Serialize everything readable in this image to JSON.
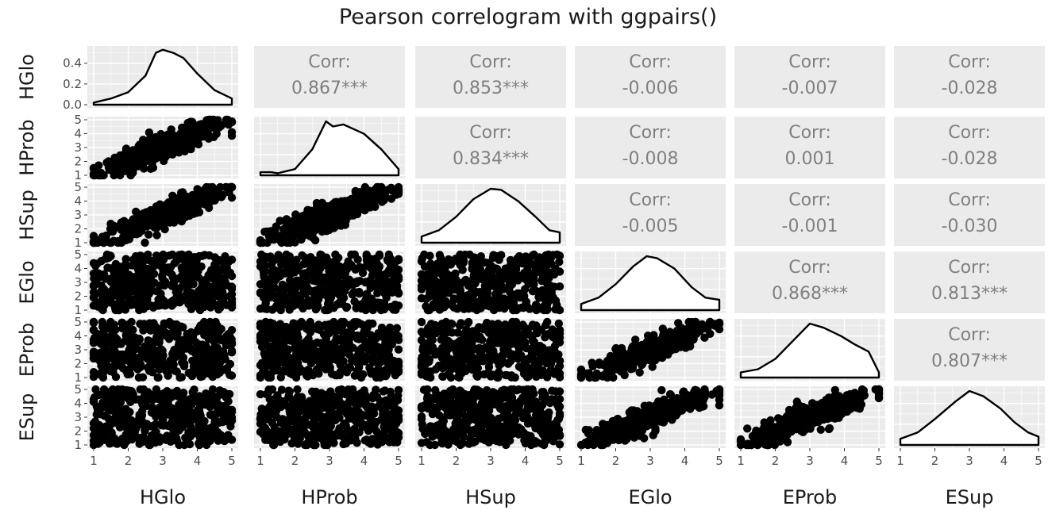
{
  "title": "Pearson correlogram with ggpairs()",
  "variables": [
    "HGlo",
    "HProb",
    "HSup",
    "EGlo",
    "EProb",
    "ESup"
  ],
  "chart_data": {
    "type": "scatter",
    "title": "Pearson correlogram with ggpairs()",
    "layout": "scatterplot-matrix",
    "variables": [
      "HGlo",
      "HProb",
      "HSup",
      "EGlo",
      "EProb",
      "ESup"
    ],
    "axis_range": [
      1,
      5
    ],
    "x_ticks": [
      1,
      2,
      3,
      4,
      5
    ],
    "y_ticks": [
      1,
      2,
      3,
      4,
      5
    ],
    "density_y_ticks_first_row": [
      "0.0",
      "0.2",
      "0.4"
    ],
    "density_y_range": [
      0,
      0.52
    ],
    "grid": true,
    "correlation_label": "Corr:",
    "correlations": [
      {
        "row": "HGlo",
        "col": "HProb",
        "value": "0.867***"
      },
      {
        "row": "HGlo",
        "col": "HSup",
        "value": "0.853***"
      },
      {
        "row": "HGlo",
        "col": "EGlo",
        "value": "-0.006"
      },
      {
        "row": "HGlo",
        "col": "EProb",
        "value": "-0.007"
      },
      {
        "row": "HGlo",
        "col": "ESup",
        "value": "-0.028"
      },
      {
        "row": "HProb",
        "col": "HSup",
        "value": "0.834***"
      },
      {
        "row": "HProb",
        "col": "EGlo",
        "value": "-0.008"
      },
      {
        "row": "HProb",
        "col": "EProb",
        "value": "0.001"
      },
      {
        "row": "HProb",
        "col": "ESup",
        "value": "-0.028"
      },
      {
        "row": "HSup",
        "col": "EGlo",
        "value": "-0.005"
      },
      {
        "row": "HSup",
        "col": "EProb",
        "value": "-0.001"
      },
      {
        "row": "HSup",
        "col": "ESup",
        "value": "-0.030"
      },
      {
        "row": "EGlo",
        "col": "EProb",
        "value": "0.868***"
      },
      {
        "row": "EGlo",
        "col": "ESup",
        "value": "0.813***"
      },
      {
        "row": "EProb",
        "col": "ESup",
        "value": "0.807***"
      }
    ],
    "densities": {
      "HGlo": [
        [
          1,
          0.02
        ],
        [
          1.5,
          0.06
        ],
        [
          2,
          0.12
        ],
        [
          2.5,
          0.28
        ],
        [
          2.8,
          0.5
        ],
        [
          3.0,
          0.53
        ],
        [
          3.3,
          0.5
        ],
        [
          3.6,
          0.45
        ],
        [
          4,
          0.3
        ],
        [
          4.5,
          0.14
        ],
        [
          5,
          0.06
        ]
      ],
      "HProb": [
        [
          1,
          0.03
        ],
        [
          1.3,
          0.03
        ],
        [
          1.5,
          0.02
        ],
        [
          2,
          0.06
        ],
        [
          2.5,
          0.25
        ],
        [
          2.9,
          0.52
        ],
        [
          3.1,
          0.47
        ],
        [
          3.4,
          0.49
        ],
        [
          4,
          0.4
        ],
        [
          4.5,
          0.25
        ],
        [
          5,
          0.06
        ]
      ],
      "HSup": [
        [
          1,
          0.06
        ],
        [
          1.5,
          0.12
        ],
        [
          2,
          0.25
        ],
        [
          2.5,
          0.42
        ],
        [
          3.0,
          0.52
        ],
        [
          3.3,
          0.51
        ],
        [
          3.8,
          0.4
        ],
        [
          4.3,
          0.25
        ],
        [
          4.7,
          0.12
        ],
        [
          5,
          0.1
        ]
      ],
      "EGlo": [
        [
          1,
          0.06
        ],
        [
          1.5,
          0.12
        ],
        [
          2,
          0.25
        ],
        [
          2.5,
          0.42
        ],
        [
          2.9,
          0.52
        ],
        [
          3.2,
          0.5
        ],
        [
          3.7,
          0.4
        ],
        [
          4.2,
          0.22
        ],
        [
          4.6,
          0.12
        ],
        [
          5,
          0.1
        ]
      ],
      "EProb": [
        [
          1,
          0.05
        ],
        [
          1.5,
          0.08
        ],
        [
          2,
          0.18
        ],
        [
          2.5,
          0.35
        ],
        [
          3.0,
          0.52
        ],
        [
          3.4,
          0.48
        ],
        [
          3.9,
          0.4
        ],
        [
          4.3,
          0.32
        ],
        [
          4.7,
          0.25
        ],
        [
          5,
          0.05
        ]
      ],
      "ESup": [
        [
          1,
          0.06
        ],
        [
          1.5,
          0.12
        ],
        [
          2,
          0.25
        ],
        [
          2.6,
          0.42
        ],
        [
          3.0,
          0.52
        ],
        [
          3.4,
          0.47
        ],
        [
          3.9,
          0.35
        ],
        [
          4.3,
          0.22
        ],
        [
          4.7,
          0.12
        ],
        [
          5,
          0.08
        ]
      ]
    },
    "scatter_patterns": {
      "strong_positive_pairs": [
        [
          "HProb",
          "HGlo"
        ],
        [
          "HSup",
          "HGlo"
        ],
        [
          "HSup",
          "HProb"
        ],
        [
          "EProb",
          "EGlo"
        ],
        [
          "ESup",
          "EGlo"
        ],
        [
          "ESup",
          "EProb"
        ]
      ],
      "no_correlation_pairs": [
        [
          "EGlo",
          "HGlo"
        ],
        [
          "EGlo",
          "HProb"
        ],
        [
          "EGlo",
          "HSup"
        ],
        [
          "EProb",
          "HGlo"
        ],
        [
          "EProb",
          "HProb"
        ],
        [
          "EProb",
          "HSup"
        ],
        [
          "ESup",
          "HGlo"
        ],
        [
          "ESup",
          "HProb"
        ],
        [
          "ESup",
          "HSup"
        ]
      ]
    }
  }
}
